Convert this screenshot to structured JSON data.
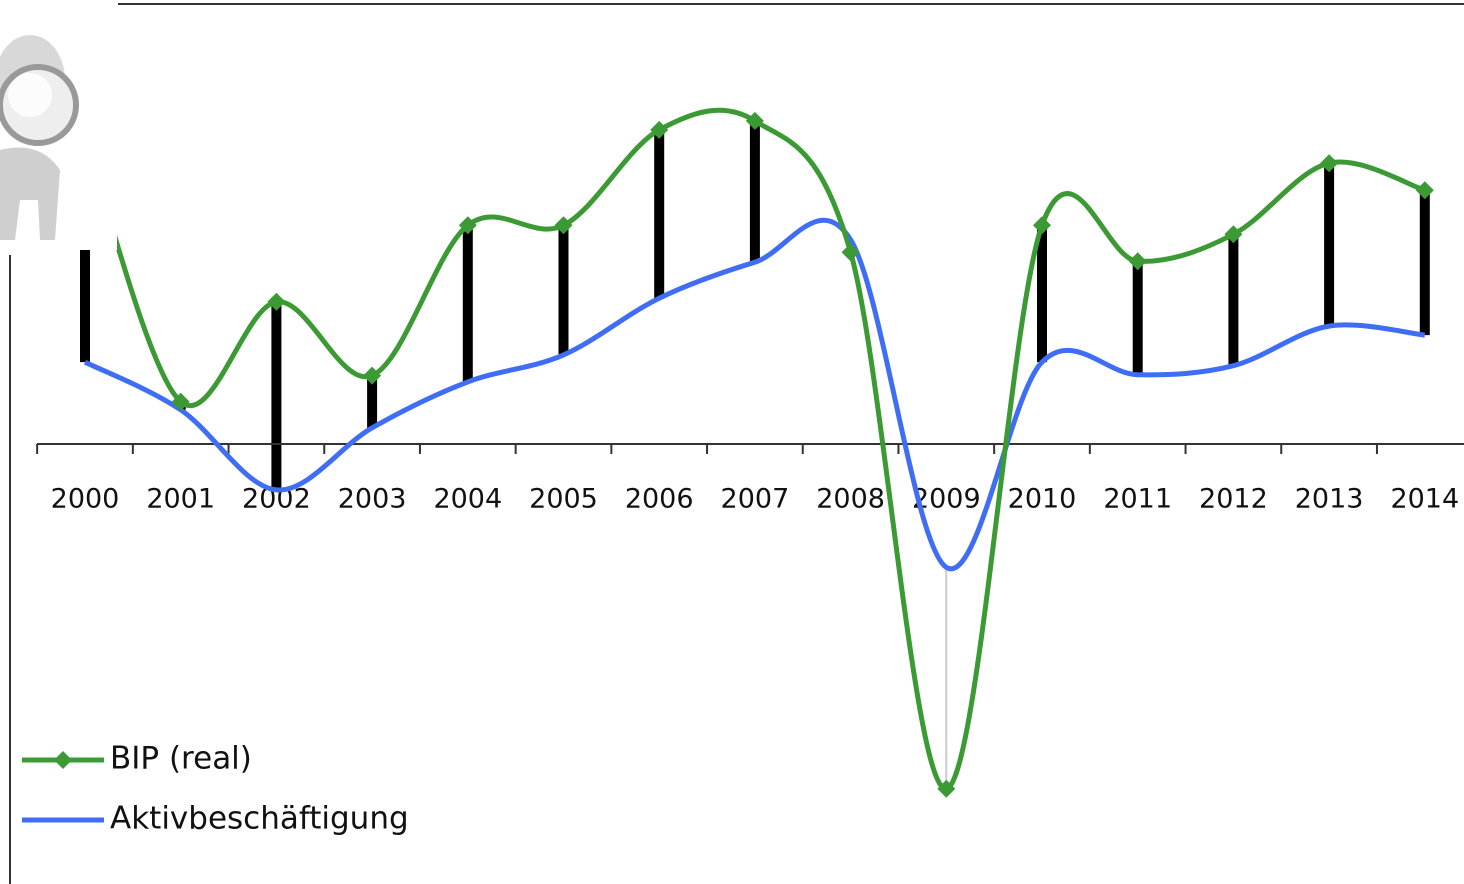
{
  "chart_data": {
    "type": "line",
    "categories": [
      "2000",
      "2001",
      "2002",
      "2003",
      "2004",
      "2005",
      "2006",
      "2007",
      "2008",
      "2009",
      "2010",
      "2011",
      "2012",
      "2013",
      "2014"
    ],
    "series": [
      {
        "name": "BIP (real)",
        "color": "#3c9a35",
        "marker": "diamond",
        "values": [
          3.4,
          0.47,
          1.58,
          0.76,
          2.43,
          2.43,
          3.49,
          3.59,
          2.13,
          -3.83,
          2.43,
          2.03,
          2.33,
          3.12,
          2.82
        ]
      },
      {
        "name": "Aktivbeschäftigung",
        "color": "#3f6ef5",
        "values": [
          0.91,
          0.38,
          -0.51,
          0.18,
          0.69,
          0.99,
          1.62,
          2.02,
          2.27,
          -1.37,
          0.91,
          0.77,
          0.87,
          1.31,
          1.21
        ]
      }
    ],
    "ylim": [
      -4.9,
      4.9
    ]
  }
}
